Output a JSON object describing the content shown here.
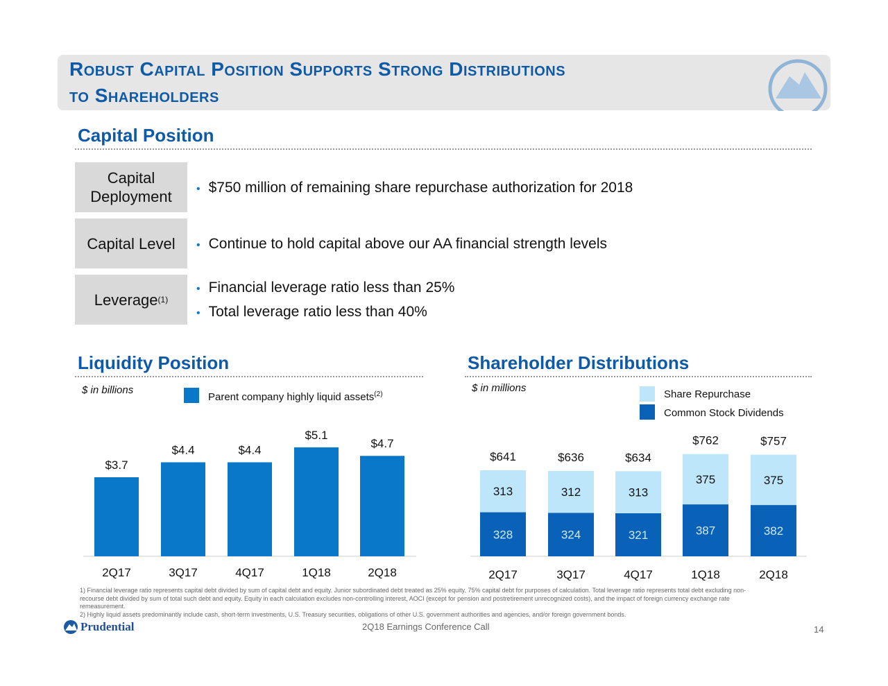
{
  "title": {
    "line1": "Robust Capital Position Supports Strong Distributions",
    "line2": "to Shareholders"
  },
  "capital": {
    "heading": "Capital Position",
    "rows": [
      {
        "label": "Capital Deployment",
        "bullets": [
          "$750 million of remaining share repurchase authorization for 2018"
        ]
      },
      {
        "label": "Capital Level",
        "bullets": [
          "Continue to hold capital above our AA financial strength levels"
        ]
      },
      {
        "label": "Leverage",
        "sup": "(1)",
        "bullets": [
          "Financial leverage ratio less than 25%",
          "Total leverage ratio less than 40%"
        ]
      }
    ]
  },
  "liquidity": {
    "heading": "Liquidity Position",
    "unit": "$ in billions",
    "legend": "Parent company highly liquid assets",
    "legend_sup": "(2)"
  },
  "distributions": {
    "heading": "Shareholder Distributions",
    "unit": "$ in millions",
    "legend": [
      "Share Repurchase",
      "Common Stock Dividends"
    ]
  },
  "chart_data": [
    {
      "type": "bar",
      "categories": [
        "2Q17",
        "3Q17",
        "4Q17",
        "1Q18",
        "2Q18"
      ],
      "series": [
        {
          "name": "Parent company highly liquid assets",
          "values": [
            3.7,
            4.4,
            4.4,
            5.1,
            4.7
          ],
          "labels": [
            "$3.7",
            "$4.4",
            "$4.4",
            "$5.1",
            "$4.7"
          ]
        }
      ],
      "color": "#0a78c8",
      "ylabel": "$ in billions"
    },
    {
      "type": "bar",
      "stacked": true,
      "categories": [
        "2Q17",
        "3Q17",
        "4Q17",
        "1Q18",
        "2Q18"
      ],
      "series": [
        {
          "name": "Common Stock Dividends",
          "values": [
            328,
            324,
            321,
            387,
            382
          ],
          "color": "#0a62b8"
        },
        {
          "name": "Share Repurchase",
          "values": [
            313,
            312,
            313,
            375,
            375
          ],
          "color": "#bde6fb"
        }
      ],
      "totals": [
        "$641",
        "$636",
        "$634",
        "$762",
        "$757"
      ],
      "ylabel": "$ in millions"
    }
  ],
  "footnotes": [
    "1)  Financial leverage ratio represents capital debt divided by sum of capital debt and equity. Junior subordinated debt treated as 25% equity, 75% capital debt for purposes of calculation. Total leverage ratio represents total debt excluding non-recourse debt divided by sum of total such debt and equity. Equity in each calculation excludes non-controlling interest, AOCI (except for pension and postretirement unrecognized costs), and the impact of foreign currency exchange rate remeasurement.",
    "2)  Highly liquid assets predominantly include cash, short-term investments, U.S. Treasury securities, obligations of other U.S. government authorities and agencies, and/or foreign government bonds."
  ],
  "footer": {
    "logo": "Prudential",
    "event": "2Q18 Earnings Conference Call",
    "page": "14"
  }
}
